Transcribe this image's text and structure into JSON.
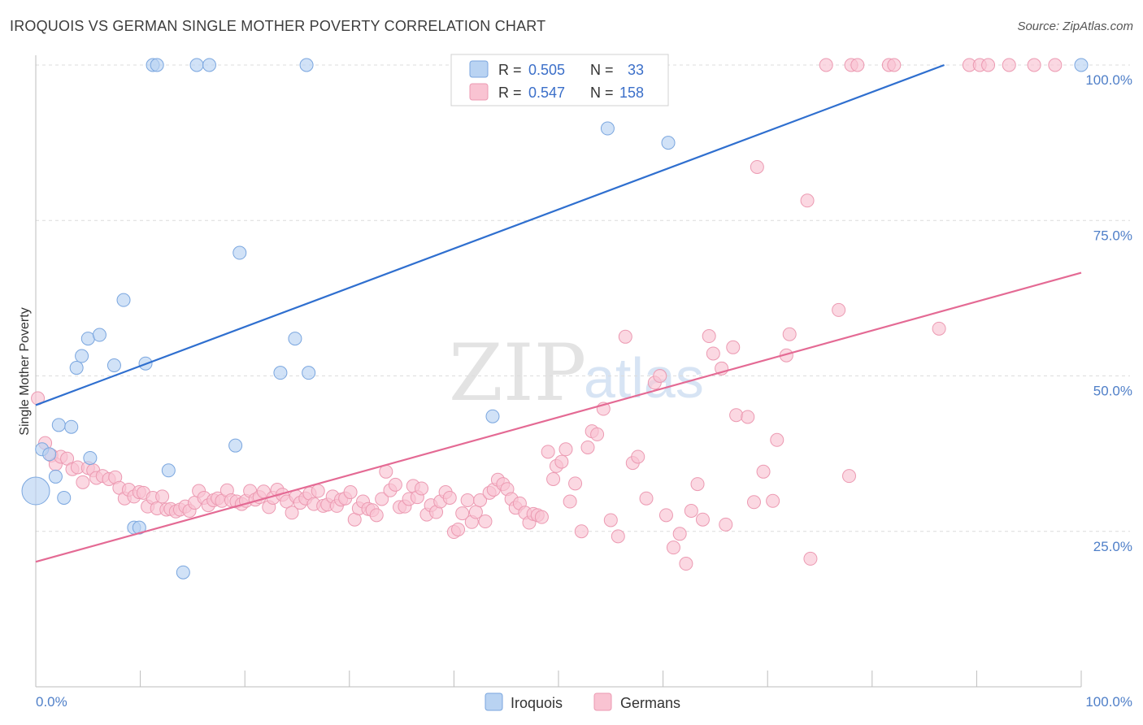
{
  "title": "IROQUOIS VS GERMAN SINGLE MOTHER POVERTY CORRELATION CHART",
  "source": "Source: ZipAtlas.com",
  "watermark": {
    "zip": "ZIP",
    "atlas": "atlas"
  },
  "colors": {
    "iroquois_fill": "#b9d3f2",
    "iroquois_stroke": "#7aa6df",
    "iroquois_line": "#2f6fcf",
    "germans_fill": "#f9c3d2",
    "germans_stroke": "#ec9ab2",
    "germans_line": "#e46a94",
    "grid": "#dcdcdc",
    "tick_label": "#4f7fc8"
  },
  "legend": {
    "rows": [
      {
        "r_label": "R =",
        "r_value": "0.505",
        "n_label": "N =",
        "n_value": "33",
        "series": "iroquois"
      },
      {
        "r_label": "R =",
        "r_value": "0.547",
        "n_label": "N =",
        "n_value": "158",
        "series": "germans"
      }
    ]
  },
  "bottom_legend": [
    {
      "label": "Iroquois",
      "series": "iroquois"
    },
    {
      "label": "Germans",
      "series": "germans"
    }
  ],
  "chart_data": {
    "type": "scatter",
    "title": "IROQUOIS VS GERMAN SINGLE MOTHER POVERTY CORRELATION CHART",
    "xlabel": "",
    "ylabel": "Single Mother Poverty",
    "xlim": [
      0,
      100
    ],
    "ylim": [
      0,
      100
    ],
    "x_tick_labels": [
      {
        "value": 0,
        "label": "0.0%"
      },
      {
        "value": 100,
        "label": "100.0%"
      }
    ],
    "y_tick_labels": [
      {
        "value": 25,
        "label": "25.0%"
      },
      {
        "value": 50,
        "label": "50.0%"
      },
      {
        "value": 75,
        "label": "75.0%"
      },
      {
        "value": 100,
        "label": "100.0%"
      }
    ],
    "grid_y": [
      25,
      50,
      75,
      100
    ],
    "series": [
      {
        "name": "Iroquois",
        "key": "iroquois",
        "r": 0.505,
        "n": 33,
        "trendline": {
          "x": [
            0,
            86.9
          ],
          "y": [
            45.3,
            100
          ]
        },
        "points": [
          [
            0,
            31.5,
            "large"
          ],
          [
            0.6,
            38.2
          ],
          [
            1.3,
            37.4
          ],
          [
            1.9,
            33.8
          ],
          [
            2.2,
            42.1
          ],
          [
            2.7,
            30.4
          ],
          [
            3.4,
            41.8
          ],
          [
            3.9,
            51.3
          ],
          [
            4.4,
            53.2
          ],
          [
            5.0,
            56.0
          ],
          [
            5.2,
            36.8
          ],
          [
            6.1,
            56.6
          ],
          [
            7.5,
            51.7
          ],
          [
            8.4,
            62.2
          ],
          [
            9.4,
            25.6
          ],
          [
            9.9,
            25.6
          ],
          [
            10.5,
            52.0
          ],
          [
            11.2,
            100
          ],
          [
            11.6,
            100
          ],
          [
            12.7,
            34.8
          ],
          [
            14.1,
            18.4
          ],
          [
            15.4,
            100
          ],
          [
            16.6,
            100
          ],
          [
            19.1,
            38.8
          ],
          [
            19.5,
            69.8
          ],
          [
            23.4,
            50.5
          ],
          [
            24.8,
            56.0
          ],
          [
            25.9,
            100
          ],
          [
            26.1,
            50.5
          ],
          [
            43.7,
            43.5
          ],
          [
            54.7,
            89.8
          ],
          [
            60.5,
            87.5
          ],
          [
            100,
            100
          ]
        ]
      },
      {
        "name": "Germans",
        "key": "germans",
        "r": 0.547,
        "n": 158,
        "trendline": {
          "x": [
            0,
            100
          ],
          "y": [
            20.1,
            66.6
          ]
        },
        "points": [
          [
            0.2,
            46.4
          ],
          [
            0.9,
            39.2
          ],
          [
            1.5,
            37.2
          ],
          [
            1.9,
            35.8
          ],
          [
            2.4,
            37.0
          ],
          [
            3.0,
            36.7
          ],
          [
            3.5,
            35.0
          ],
          [
            4.0,
            35.3
          ],
          [
            4.5,
            32.9
          ],
          [
            5.0,
            35.2
          ],
          [
            5.5,
            34.8
          ],
          [
            5.8,
            33.6
          ],
          [
            6.4,
            33.9
          ],
          [
            7.0,
            33.4
          ],
          [
            7.6,
            33.7
          ],
          [
            8.0,
            32.0
          ],
          [
            8.5,
            30.3
          ],
          [
            8.9,
            31.7
          ],
          [
            9.4,
            30.6
          ],
          [
            9.9,
            31.3
          ],
          [
            10.3,
            31.2
          ],
          [
            10.7,
            29.0
          ],
          [
            11.2,
            30.4
          ],
          [
            11.6,
            28.7
          ],
          [
            12.1,
            30.6
          ],
          [
            12.5,
            28.5
          ],
          [
            12.9,
            28.6
          ],
          [
            13.4,
            28.2
          ],
          [
            13.8,
            28.5
          ],
          [
            14.3,
            29.0
          ],
          [
            14.7,
            28.3
          ],
          [
            15.2,
            29.6
          ],
          [
            15.6,
            31.5
          ],
          [
            16.1,
            30.4
          ],
          [
            16.5,
            29.2
          ],
          [
            17.0,
            30.0
          ],
          [
            17.4,
            30.3
          ],
          [
            17.8,
            29.9
          ],
          [
            18.3,
            31.6
          ],
          [
            18.7,
            30.0
          ],
          [
            19.2,
            29.8
          ],
          [
            19.7,
            29.4
          ],
          [
            20.1,
            29.9
          ],
          [
            20.5,
            31.5
          ],
          [
            21.0,
            30.1
          ],
          [
            21.4,
            30.5
          ],
          [
            21.8,
            31.4
          ],
          [
            22.3,
            28.9
          ],
          [
            22.7,
            30.4
          ],
          [
            23.1,
            31.7
          ],
          [
            23.6,
            30.9
          ],
          [
            24.0,
            29.8
          ],
          [
            24.5,
            28.0
          ],
          [
            24.9,
            30.6
          ],
          [
            25.3,
            29.6
          ],
          [
            25.8,
            30.3
          ],
          [
            26.2,
            31.1
          ],
          [
            26.6,
            29.4
          ],
          [
            27.0,
            31.5
          ],
          [
            27.5,
            29.1
          ],
          [
            27.9,
            29.3
          ],
          [
            28.4,
            30.6
          ],
          [
            28.8,
            29.1
          ],
          [
            29.2,
            30.1
          ],
          [
            29.6,
            30.3
          ],
          [
            30.1,
            31.3
          ],
          [
            30.5,
            26.9
          ],
          [
            30.9,
            28.7
          ],
          [
            31.3,
            29.8
          ],
          [
            31.8,
            28.6
          ],
          [
            32.2,
            28.4
          ],
          [
            32.6,
            27.6
          ],
          [
            33.1,
            30.2
          ],
          [
            33.5,
            34.6
          ],
          [
            33.9,
            31.6
          ],
          [
            34.4,
            32.5
          ],
          [
            34.8,
            28.9
          ],
          [
            35.3,
            29.0
          ],
          [
            35.7,
            30.2
          ],
          [
            36.1,
            32.3
          ],
          [
            36.5,
            30.5
          ],
          [
            36.9,
            31.9
          ],
          [
            37.4,
            27.7
          ],
          [
            37.8,
            29.2
          ],
          [
            38.3,
            28.1
          ],
          [
            38.7,
            29.8
          ],
          [
            39.2,
            31.3
          ],
          [
            39.6,
            30.4
          ],
          [
            40.0,
            24.9
          ],
          [
            40.4,
            25.3
          ],
          [
            40.8,
            27.9
          ],
          [
            41.3,
            30.0
          ],
          [
            41.7,
            26.5
          ],
          [
            42.1,
            28.1
          ],
          [
            42.5,
            30.0
          ],
          [
            43.0,
            26.6
          ],
          [
            43.4,
            31.2
          ],
          [
            43.8,
            31.7
          ],
          [
            44.2,
            33.3
          ],
          [
            44.7,
            32.6
          ],
          [
            45.1,
            31.8
          ],
          [
            45.5,
            30.2
          ],
          [
            45.9,
            28.8
          ],
          [
            46.3,
            29.5
          ],
          [
            46.8,
            28.0
          ],
          [
            47.2,
            26.4
          ],
          [
            47.6,
            27.8
          ],
          [
            48.0,
            27.6
          ],
          [
            48.4,
            27.3
          ],
          [
            49.0,
            37.8
          ],
          [
            49.5,
            33.4
          ],
          [
            49.8,
            35.5
          ],
          [
            50.3,
            36.2
          ],
          [
            50.7,
            38.2
          ],
          [
            51.1,
            29.8
          ],
          [
            51.6,
            32.7
          ],
          [
            52.2,
            25.0
          ],
          [
            52.8,
            38.5
          ],
          [
            53.2,
            41.1
          ],
          [
            53.7,
            40.6
          ],
          [
            54.3,
            44.7
          ],
          [
            55.0,
            26.8
          ],
          [
            55.7,
            24.2
          ],
          [
            56.4,
            56.3
          ],
          [
            57.1,
            36.0
          ],
          [
            57.6,
            37.0
          ],
          [
            58.4,
            30.3
          ],
          [
            59.2,
            48.9
          ],
          [
            59.7,
            50.0
          ],
          [
            60.3,
            27.6
          ],
          [
            61.0,
            22.4
          ],
          [
            61.6,
            24.6
          ],
          [
            62.2,
            19.8
          ],
          [
            62.7,
            28.3
          ],
          [
            63.3,
            32.6
          ],
          [
            63.8,
            26.9
          ],
          [
            64.4,
            56.4
          ],
          [
            64.8,
            53.6
          ],
          [
            65.6,
            51.2
          ],
          [
            66.0,
            26.1
          ],
          [
            66.7,
            54.6
          ],
          [
            67.0,
            43.7
          ],
          [
            68.1,
            43.4
          ],
          [
            68.7,
            29.7
          ],
          [
            69.0,
            83.6
          ],
          [
            69.6,
            34.6
          ],
          [
            70.5,
            29.9
          ],
          [
            70.9,
            39.7
          ],
          [
            71.8,
            53.3
          ],
          [
            72.1,
            56.7
          ],
          [
            73.8,
            78.2
          ],
          [
            74.1,
            20.6
          ],
          [
            75.6,
            100
          ],
          [
            76.8,
            60.6
          ],
          [
            77.8,
            33.9
          ],
          [
            78.0,
            100
          ],
          [
            78.6,
            100
          ],
          [
            81.6,
            100
          ],
          [
            82.1,
            100
          ],
          [
            86.4,
            57.6
          ],
          [
            89.3,
            100
          ],
          [
            90.3,
            100
          ],
          [
            91.1,
            100
          ],
          [
            93.1,
            100
          ],
          [
            95.5,
            100
          ],
          [
            97.5,
            100
          ]
        ]
      }
    ]
  }
}
